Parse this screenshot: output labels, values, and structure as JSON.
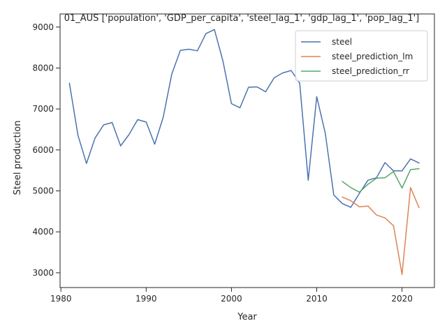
{
  "chart_data": {
    "type": "line",
    "title": "01_AUS ['population', 'GDP_per_capita', 'steel_lag_1', 'gdp_lag_1', 'pop_lag_1']",
    "xlabel": "Year",
    "ylabel": "Steel production",
    "xlim": [
      1979.9,
      2023.8
    ],
    "ylim": [
      2640,
      9320
    ],
    "xticks": [
      1980,
      1990,
      2000,
      2010,
      2020
    ],
    "yticks": [
      3000,
      4000,
      5000,
      6000,
      7000,
      8000,
      9000
    ],
    "grid": false,
    "legend_position": "top-right",
    "series": [
      {
        "name": "steel",
        "color": "#4c72b0",
        "points": [
          [
            1981,
            7630
          ],
          [
            1982,
            6360
          ],
          [
            1983,
            5670
          ],
          [
            1984,
            6290
          ],
          [
            1985,
            6610
          ],
          [
            1986,
            6670
          ],
          [
            1987,
            6100
          ],
          [
            1988,
            6380
          ],
          [
            1989,
            6740
          ],
          [
            1990,
            6680
          ],
          [
            1991,
            6140
          ],
          [
            1992,
            6800
          ],
          [
            1993,
            7850
          ],
          [
            1994,
            8430
          ],
          [
            1995,
            8460
          ],
          [
            1996,
            8420
          ],
          [
            1997,
            8840
          ],
          [
            1998,
            8940
          ],
          [
            1999,
            8170
          ],
          [
            2000,
            7130
          ],
          [
            2001,
            7030
          ],
          [
            2002,
            7530
          ],
          [
            2003,
            7540
          ],
          [
            2004,
            7420
          ],
          [
            2005,
            7760
          ],
          [
            2006,
            7880
          ],
          [
            2007,
            7940
          ],
          [
            2008,
            7630
          ],
          [
            2009,
            5260
          ],
          [
            2010,
            7300
          ],
          [
            2011,
            6410
          ],
          [
            2012,
            4900
          ],
          [
            2013,
            4690
          ],
          [
            2014,
            4600
          ],
          [
            2015,
            4940
          ],
          [
            2016,
            5260
          ],
          [
            2017,
            5320
          ],
          [
            2018,
            5690
          ],
          [
            2019,
            5490
          ],
          [
            2020,
            5490
          ],
          [
            2021,
            5780
          ],
          [
            2022,
            5680
          ]
        ]
      },
      {
        "name": "steel_prediction_lm",
        "color": "#dd8452",
        "points": [
          [
            2013,
            4850
          ],
          [
            2014,
            4760
          ],
          [
            2015,
            4610
          ],
          [
            2016,
            4630
          ],
          [
            2017,
            4410
          ],
          [
            2018,
            4340
          ],
          [
            2019,
            4150
          ],
          [
            2020,
            2960
          ],
          [
            2021,
            5080
          ],
          [
            2022,
            4590
          ]
        ]
      },
      {
        "name": "steel_prediction_rr",
        "color": "#55a868",
        "points": [
          [
            2013,
            5230
          ],
          [
            2014,
            5080
          ],
          [
            2015,
            4970
          ],
          [
            2016,
            5160
          ],
          [
            2017,
            5310
          ],
          [
            2018,
            5320
          ],
          [
            2019,
            5470
          ],
          [
            2020,
            5070
          ],
          [
            2021,
            5520
          ],
          [
            2022,
            5540
          ]
        ]
      }
    ]
  }
}
